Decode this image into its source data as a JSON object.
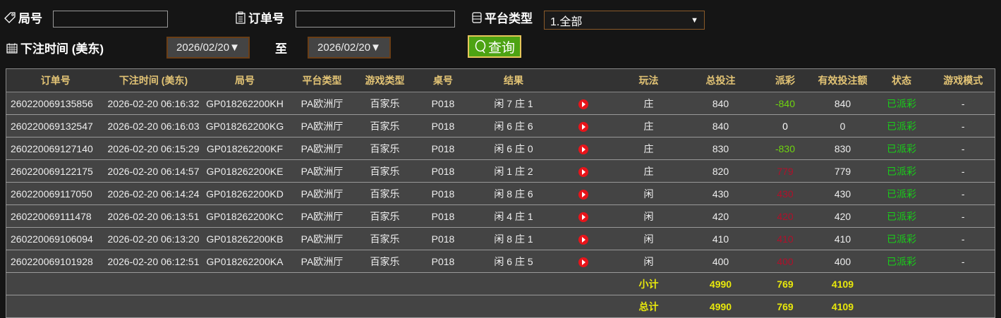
{
  "filters": {
    "round_label": "局号",
    "round_value": "",
    "order_label": "订单号",
    "order_value": "",
    "platform_label": "平台类型",
    "platform_value": "1.全部",
    "time_label": "下注时间 (美东)",
    "date_from": "2026/02/20▼",
    "to_label": "至",
    "date_to": "2026/02/20▼",
    "query_label": "查询"
  },
  "table": {
    "headers": [
      "订单号",
      "下注时间 (美东)",
      "局号",
      "平台类型",
      "游戏类型",
      "桌号",
      "结果",
      "",
      "玩法",
      "总投注",
      "派彩",
      "有效投注额",
      "状态",
      "游戏模式"
    ],
    "rows": [
      {
        "order": "260220069135856",
        "time": "2026-02-20 06:16:32",
        "round": "GP018262200KH",
        "platform": "PA欧洲厅",
        "game": "百家乐",
        "table": "P018",
        "result": "闲 7 庄 1",
        "play": "庄",
        "bet": "840",
        "payout": "-840",
        "payout_color": "#6fd40f",
        "valid": "840",
        "status": "已派彩",
        "mode": "-"
      },
      {
        "order": "260220069132547",
        "time": "2026-02-20 06:16:03",
        "round": "GP018262200KG",
        "platform": "PA欧洲厅",
        "game": "百家乐",
        "table": "P018",
        "result": "闲 6 庄 6",
        "play": "庄",
        "bet": "840",
        "payout": "0",
        "payout_color": "#ffffff",
        "valid": "0",
        "status": "已派彩",
        "mode": "-"
      },
      {
        "order": "260220069127140",
        "time": "2026-02-20 06:15:29",
        "round": "GP018262200KF",
        "platform": "PA欧洲厅",
        "game": "百家乐",
        "table": "P018",
        "result": "闲 6 庄 0",
        "play": "庄",
        "bet": "830",
        "payout": "-830",
        "payout_color": "#6fd40f",
        "valid": "830",
        "status": "已派彩",
        "mode": "-"
      },
      {
        "order": "260220069122175",
        "time": "2026-02-20 06:14:57",
        "round": "GP018262200KE",
        "platform": "PA欧洲厅",
        "game": "百家乐",
        "table": "P018",
        "result": "闲 1 庄 2",
        "play": "庄",
        "bet": "820",
        "payout": "779",
        "payout_color": "#b0102a",
        "valid": "779",
        "status": "已派彩",
        "mode": "-"
      },
      {
        "order": "260220069117050",
        "time": "2026-02-20 06:14:24",
        "round": "GP018262200KD",
        "platform": "PA欧洲厅",
        "game": "百家乐",
        "table": "P018",
        "result": "闲 8 庄 6",
        "play": "闲",
        "bet": "430",
        "payout": "430",
        "payout_color": "#b0102a",
        "valid": "430",
        "status": "已派彩",
        "mode": "-"
      },
      {
        "order": "260220069111478",
        "time": "2026-02-20 06:13:51",
        "round": "GP018262200KC",
        "platform": "PA欧洲厅",
        "game": "百家乐",
        "table": "P018",
        "result": "闲 4 庄 1",
        "play": "闲",
        "bet": "420",
        "payout": "420",
        "payout_color": "#b0102a",
        "valid": "420",
        "status": "已派彩",
        "mode": "-"
      },
      {
        "order": "260220069106094",
        "time": "2026-02-20 06:13:20",
        "round": "GP018262200KB",
        "platform": "PA欧洲厅",
        "game": "百家乐",
        "table": "P018",
        "result": "闲 8 庄 1",
        "play": "闲",
        "bet": "410",
        "payout": "410",
        "payout_color": "#b0102a",
        "valid": "410",
        "status": "已派彩",
        "mode": "-"
      },
      {
        "order": "260220069101928",
        "time": "2026-02-20 06:12:51",
        "round": "GP018262200KA",
        "platform": "PA欧洲厅",
        "game": "百家乐",
        "table": "P018",
        "result": "闲 6 庄 5",
        "play": "闲",
        "bet": "400",
        "payout": "400",
        "payout_color": "#b0102a",
        "valid": "400",
        "status": "已派彩",
        "mode": "-"
      }
    ],
    "subtotal": {
      "label": "小计",
      "bet": "4990",
      "payout": "769",
      "valid": "4109"
    },
    "total": {
      "label": "总计",
      "bet": "4990",
      "payout": "769",
      "valid": "4109"
    }
  },
  "colors": {
    "status": "#18d018",
    "header_text": "#e3c475",
    "sum_text": "#e8e80c",
    "query_bg": "#4da313"
  }
}
